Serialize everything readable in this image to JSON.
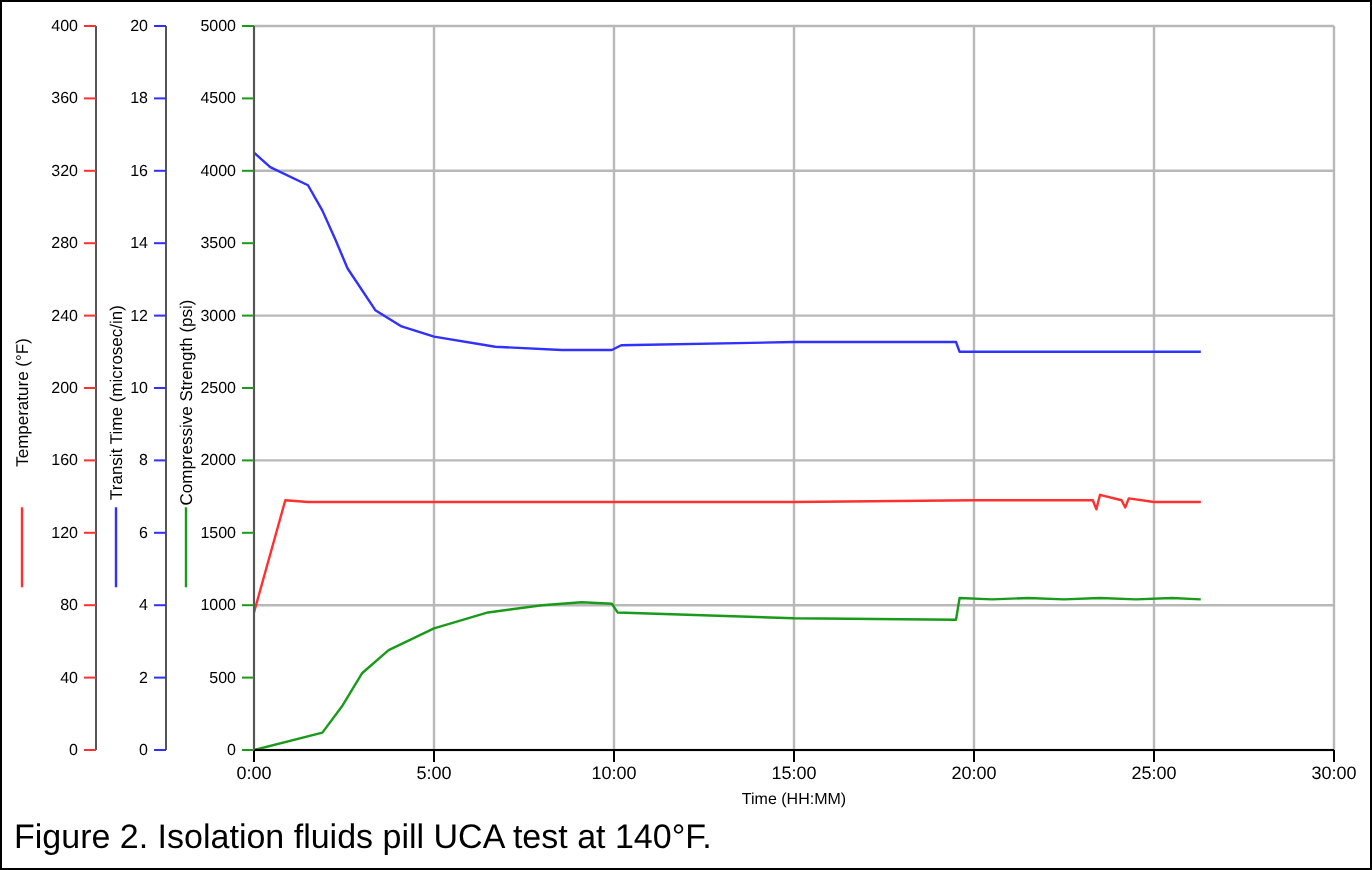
{
  "chart_data": {
    "type": "line",
    "title": "Figure 2. Isolation fluids pill UCA test at 140°F.",
    "xlabel": "Time (HH:MM)",
    "ylabel": "Temperature (°F)",
    "y2label": "Transit Time (microsec/in)",
    "y3label": "Compressive Strength (psi)",
    "xlim": [
      0,
      30
    ],
    "xticks": [
      {
        "value": 0,
        "label": "0:00"
      },
      {
        "value": 5,
        "label": "5:00"
      },
      {
        "value": 10,
        "label": "10:00"
      },
      {
        "value": 15,
        "label": "15:00"
      },
      {
        "value": 20,
        "label": "20:00"
      },
      {
        "value": 25,
        "label": "25:00"
      },
      {
        "value": 30,
        "label": "30:00"
      }
    ],
    "ylim": [
      0,
      400
    ],
    "yticks": [
      0,
      40,
      80,
      120,
      160,
      200,
      240,
      280,
      320,
      360,
      400
    ],
    "y2lim": [
      0,
      20
    ],
    "y2ticks": [
      0,
      2,
      4,
      6,
      8,
      10,
      12,
      14,
      16,
      18,
      20
    ],
    "y3lim": [
      0,
      5000
    ],
    "y3ticks": [
      0,
      500,
      1000,
      1500,
      2000,
      2500,
      3000,
      3500,
      4000,
      4500,
      5000
    ],
    "grid": true,
    "series": [
      {
        "axis": "y",
        "color": "#ff3030",
        "x": [
          0,
          0.87,
          1.5,
          5,
          10,
          15,
          20,
          23.3,
          23.4,
          23.5,
          24.1,
          24.2,
          24.3,
          25,
          26.3
        ],
        "values": [
          76,
          138,
          137,
          137,
          137,
          137,
          138,
          138,
          133,
          141,
          138,
          134,
          139,
          137,
          137
        ]
      },
      {
        "axis": "y2",
        "color": "#3030ff",
        "x": [
          0,
          0.45,
          1.5,
          1.9,
          2.26,
          2.6,
          3.37,
          4.1,
          5.0,
          6.7,
          8.55,
          9.94,
          10.2,
          15,
          19.5,
          19.6,
          26.3
        ],
        "values": [
          16.5,
          16.1,
          15.6,
          14.9,
          14.1,
          13.3,
          12.15,
          11.7,
          11.42,
          11.14,
          11.05,
          11.05,
          11.18,
          11.27,
          11.27,
          11.0,
          11.0
        ]
      },
      {
        "axis": "y3",
        "color": "#1a9a1a",
        "x": [
          0,
          1.9,
          2.44,
          3.0,
          3.74,
          5.0,
          6.5,
          8.0,
          9.1,
          9.94,
          10.1,
          15,
          19.5,
          19.6,
          20.5,
          21.5,
          22.5,
          23.5,
          24.5,
          25.5,
          26.3
        ],
        "values": [
          0,
          120,
          300,
          530,
          690,
          840,
          950,
          1000,
          1020,
          1010,
          950,
          910,
          900,
          1050,
          1040,
          1050,
          1040,
          1050,
          1040,
          1050,
          1040
        ]
      }
    ]
  }
}
